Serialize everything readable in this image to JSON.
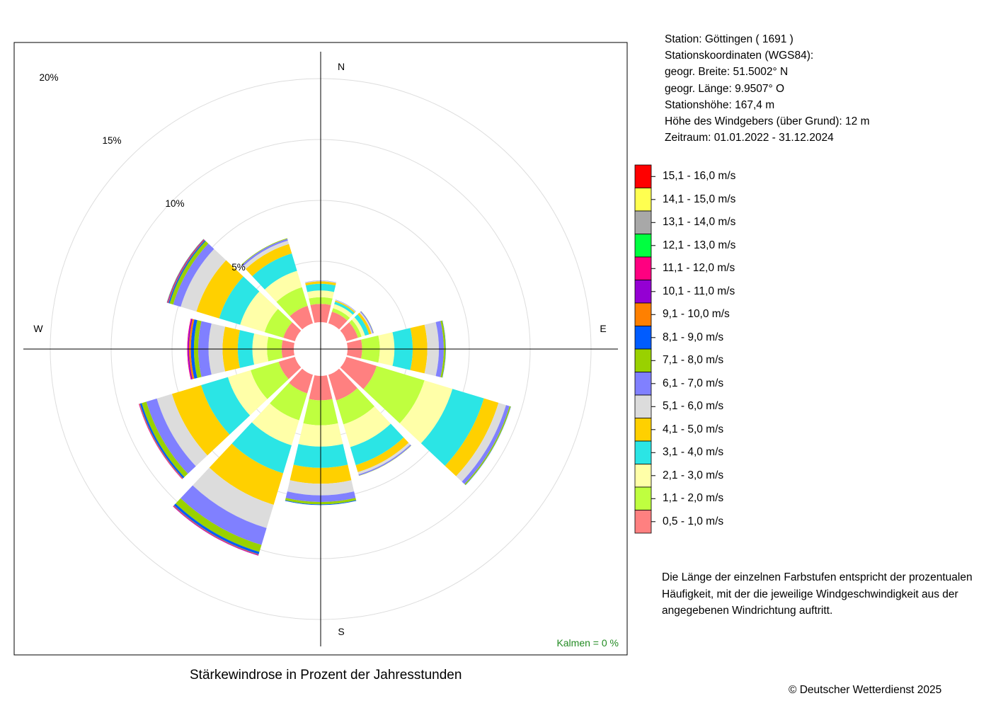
{
  "station": {
    "line1": "Station:  Göttingen  ( 1691 )",
    "line2": "Stationskoordinaten (WGS84):",
    "line3": "geogr. Breite: 51.5002° N",
    "line4": "geogr. Länge:   9.9507° O",
    "line5": "Stationshöhe: 167,4 m",
    "line6": "Höhe des Windgebers (über Grund): 12 m",
    "line7": "Zeitraum: 01.01.2022 - 31.12.2024"
  },
  "note": {
    "line1": "Die Länge der einzelnen Farbstufen entspricht der prozentualen",
    "line2": "Häufigkeit, mit der die jeweilige Windgeschwindigkeit aus der",
    "line3": "angegebenen Windrichtung auftritt."
  },
  "caption": "Stärkewindrose in Prozent der Jahresstunden",
  "copyright": "© Deutscher Wetterdienst  2025",
  "chart_data": {
    "type": "wind-rose",
    "title": "Stärkewindrose in Prozent der Jahresstunden",
    "compass_labels": [
      "N",
      "E",
      "S",
      "W"
    ],
    "ring_labels": [
      "5%",
      "10%",
      "15%",
      "20%"
    ],
    "ring_values": [
      5,
      10,
      15,
      20
    ],
    "calm_label": "Kalmen  =  0 %",
    "calm_color": "#228B22",
    "grid": true,
    "speed_classes": [
      {
        "label": "0,5 - 1,0 m/s",
        "color": "#FF8080"
      },
      {
        "label": "1,1 - 2,0 m/s",
        "color": "#BFFF3F"
      },
      {
        "label": "2,1 - 3,0 m/s",
        "color": "#FFFFA8"
      },
      {
        "label": "3,1 - 4,0 m/s",
        "color": "#2BE5E5"
      },
      {
        "label": "4,1 - 5,0 m/s",
        "color": "#FFD000"
      },
      {
        "label": "5,1 - 6,0 m/s",
        "color": "#DCDCDC"
      },
      {
        "label": "6,1 - 7,0 m/s",
        "color": "#8080FF"
      },
      {
        "label": "7,1 - 8,0 m/s",
        "color": "#99D100"
      },
      {
        "label": "8,1 - 9,0 m/s",
        "color": "#005CFF"
      },
      {
        "label": "9,1 - 10,0 m/s",
        "color": "#FF8000"
      },
      {
        "label": "10,1 - 11,0 m/s",
        "color": "#9400D3"
      },
      {
        "label": "11,1 - 12,0 m/s",
        "color": "#FF0080"
      },
      {
        "label": "12,1 - 13,0 m/s",
        "color": "#00FF40"
      },
      {
        "label": "13,1 - 14,0 m/s",
        "color": "#A8A8A8"
      },
      {
        "label": "14,1 - 15,0 m/s",
        "color": "#FFFF50"
      },
      {
        "label": "15,1 - 16,0 m/s",
        "color": "#FF0000"
      }
    ],
    "directions": [
      0,
      30,
      60,
      90,
      120,
      150,
      180,
      210,
      240,
      270,
      300,
      330
    ],
    "series": [
      {
        "direction": "0",
        "values": [
          1.5,
          0.55,
          0.55,
          0.55,
          0.2,
          0.05,
          0.02,
          0,
          0,
          0,
          0,
          0,
          0,
          0,
          0,
          0
        ]
      },
      {
        "direction": "30",
        "values": [
          1.0,
          0.3,
          0.35,
          0.2,
          0.1,
          0.05,
          0.03,
          0,
          0,
          0,
          0,
          0,
          0,
          0,
          0,
          0
        ]
      },
      {
        "direction": "60",
        "values": [
          1.0,
          0.3,
          0.3,
          0.35,
          0.2,
          0.1,
          0.08,
          0.02,
          0,
          0,
          0,
          0,
          0,
          0,
          0,
          0
        ]
      },
      {
        "direction": "90",
        "values": [
          1.2,
          1.45,
          1.2,
          1.5,
          1.2,
          0.95,
          0.4,
          0.15,
          0.02,
          0,
          0,
          0,
          0,
          0,
          0,
          0
        ]
      },
      {
        "direction": "120",
        "values": [
          2.6,
          4.1,
          2.4,
          2.7,
          1.25,
          0.65,
          0.3,
          0.1,
          0.02,
          0,
          0,
          0,
          0,
          0,
          0,
          0
        ]
      },
      {
        "direction": "150",
        "values": [
          2.2,
          2.05,
          1.95,
          1.55,
          0.6,
          0.2,
          0.1,
          0.02,
          0,
          0,
          0,
          0,
          0,
          0,
          0,
          0
        ]
      },
      {
        "direction": "180",
        "values": [
          2.0,
          2.05,
          1.75,
          1.75,
          1.3,
          0.95,
          0.55,
          0.2,
          0.05,
          0,
          0,
          0,
          0,
          0,
          0,
          0
        ]
      },
      {
        "direction": "210",
        "values": [
          1.6,
          2.3,
          2.15,
          2.4,
          2.7,
          2.0,
          1.45,
          0.6,
          0.2,
          0.05,
          0.05,
          0.02,
          0,
          0,
          0,
          0
        ]
      },
      {
        "direction": "240",
        "values": [
          1.4,
          2.4,
          1.95,
          2.3,
          2.5,
          1.3,
          0.9,
          0.4,
          0.15,
          0.05,
          0.03,
          0.02,
          0,
          0,
          0,
          0
        ]
      },
      {
        "direction": "270",
        "values": [
          1.0,
          1.2,
          1.2,
          1.2,
          1.25,
          1.15,
          0.85,
          0.35,
          0.25,
          0.15,
          0.1,
          0.05,
          0,
          0,
          0,
          0
        ]
      },
      {
        "direction": "300",
        "values": [
          1.0,
          1.6,
          2.1,
          1.8,
          1.95,
          1.35,
          0.65,
          0.3,
          0.1,
          0.05,
          0.05,
          0.03,
          0.02,
          0,
          0,
          0
        ]
      },
      {
        "direction": "330",
        "values": [
          1.5,
          1.6,
          1.4,
          1.5,
          0.8,
          0.3,
          0.15,
          0.05,
          0,
          0,
          0,
          0,
          0,
          0,
          0,
          0
        ]
      }
    ]
  }
}
